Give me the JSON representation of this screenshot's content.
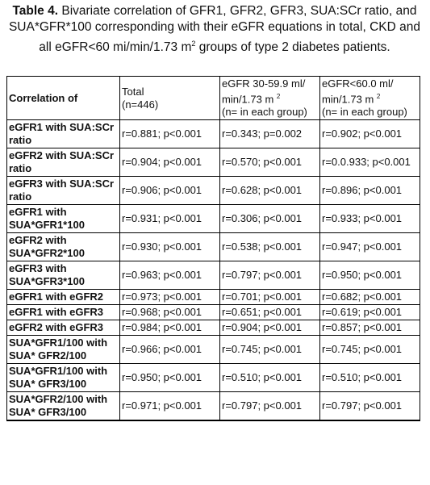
{
  "caption": {
    "label": "Table 4.",
    "text_before": " Bivariate correlation of GFR1, GFR2, GFR3, SUA:SCr ratio, and SUA*GFR*100 corresponding with their eGFR equations in total, CKD and all eGFR<60 mi/min/1.73 m",
    "superscript": "2",
    "text_after": " groups of type 2 diabetes patients."
  },
  "table": {
    "header": [
      {
        "line1": "Correlation of"
      },
      {
        "line1": "Total",
        "line2": "(n=446)"
      },
      {
        "line1": "eGFR 30-59.9 ml/",
        "line2": "min/1.73 m ",
        "sup": "2",
        "line3": "(n= in each group)"
      },
      {
        "line1": "eGFR<60.0 ml/",
        "line2": "min/1.73 m ",
        "sup": "2",
        "line3": "(n= in each group)"
      }
    ],
    "rows": [
      [
        "eGFR1 with SUA:SCr ratio",
        "r=0.881; p<0.001",
        "r=0.343; p=0.002",
        "r=0.902; p<0.001"
      ],
      [
        "eGFR2 with SUA:SCr ratio",
        "r=0.904; p<0.001",
        "r=0.570; p<0.001",
        "r=0.0.933; p<0.001"
      ],
      [
        "eGFR3 with SUA:SCr ratio",
        "r=0.906; p<0.001",
        "r=0.628; p<0.001",
        "r=0.896; p<0.001"
      ],
      [
        "eGFR1 with SUA*GFR1*100",
        "r=0.931; p<0.001",
        "r=0.306; p<0.001",
        "r=0.933; p<0.001"
      ],
      [
        "eGFR2 with SUA*GFR2*100",
        "r=0.930; p<0.001",
        "r=0.538; p<0.001",
        "r=0.947; p<0.001"
      ],
      [
        "eGFR3 with SUA*GFR3*100",
        "r=0.963; p<0.001",
        "r=0.797; p<0.001",
        "r=0.950; p<0.001"
      ],
      [
        "eGFR1 with eGFR2",
        "r=0.973; p<0.001",
        "r=0.701; p<0.001",
        "r=0.682; p<0.001"
      ],
      [
        "eGFR1 with eGFR3",
        "r=0.968; p<0.001",
        "r=0.651; p<0.001",
        "r=0.619; p<0.001"
      ],
      [
        "eGFR2 with eGFR3",
        "r=0.984; p<0.001",
        "r=0.904; p<0.001",
        "r=0.857; p<0.001"
      ],
      [
        "SUA*GFR1/100 with SUA* GFR2/100",
        "r=0.966; p<0.001",
        "r=0.745; p<0.001",
        "r=0.745; p<0.001"
      ],
      [
        "SUA*GFR1/100 with SUA* GFR3/100",
        "r=0.950; p<0.001",
        "r=0.510; p<0.001",
        "r=0.510; p<0.001"
      ],
      [
        "SUA*GFR2/100 with SUA* GFR3/100",
        "r=0.971; p<0.001",
        "r=0.797; p<0.001",
        "r=0.797; p<0.001"
      ]
    ]
  }
}
